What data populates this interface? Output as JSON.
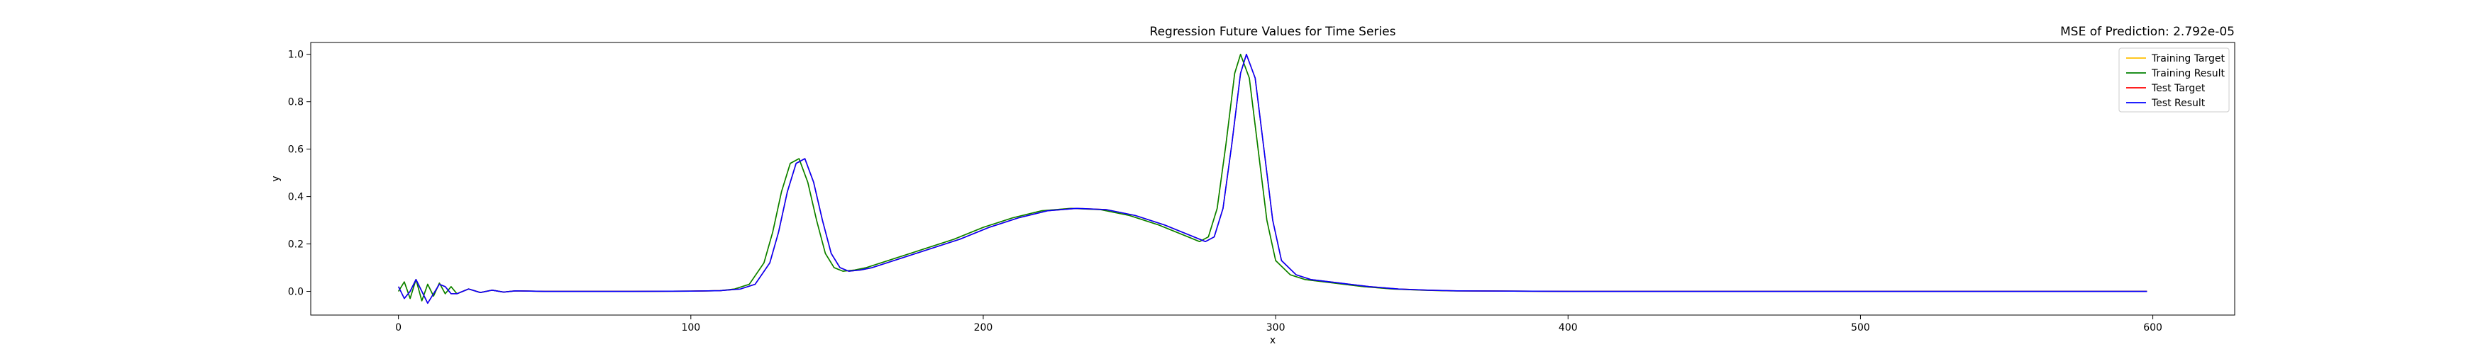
{
  "chart_data": {
    "type": "line",
    "title": "Regression Future Values for Time Series",
    "annotation": "MSE of Prediction: 2.792e-05",
    "xlabel": "x",
    "ylabel": "y",
    "xlim": [
      -30,
      628
    ],
    "ylim": [
      -0.1,
      1.05
    ],
    "xticks": [
      0,
      100,
      200,
      300,
      400,
      500,
      600
    ],
    "yticks": [
      0.0,
      0.2,
      0.4,
      0.6,
      0.8,
      1.0
    ],
    "grid": false,
    "legend_position": "top-right",
    "series": [
      {
        "name": "Training Target",
        "color": "#ffbf00",
        "x": [
          0,
          2,
          4,
          6,
          8,
          10,
          12,
          14,
          16,
          18,
          20,
          24,
          28,
          32,
          36,
          40,
          50,
          60,
          80,
          100,
          110,
          115,
          120,
          125,
          128,
          131,
          134,
          137,
          140,
          143,
          146,
          149,
          152,
          156,
          160,
          170,
          180,
          190,
          200,
          210,
          220,
          230,
          240,
          250,
          260,
          265,
          270,
          274,
          277,
          280,
          283,
          286,
          288,
          291,
          294,
          297,
          300,
          305,
          310,
          320,
          330,
          340,
          350,
          360,
          400,
          450,
          500,
          550,
          598
        ],
        "y": [
          0.0,
          0.04,
          -0.03,
          0.05,
          -0.04,
          0.03,
          -0.02,
          0.035,
          -0.01,
          0.02,
          -0.01,
          0.01,
          -0.005,
          0.005,
          -0.003,
          0.002,
          0.0,
          0.0,
          0.0,
          0.001,
          0.003,
          0.01,
          0.03,
          0.12,
          0.25,
          0.42,
          0.54,
          0.56,
          0.46,
          0.3,
          0.16,
          0.1,
          0.085,
          0.09,
          0.1,
          0.14,
          0.18,
          0.22,
          0.27,
          0.31,
          0.34,
          0.35,
          0.345,
          0.32,
          0.28,
          0.255,
          0.23,
          0.21,
          0.23,
          0.35,
          0.62,
          0.92,
          1.0,
          0.9,
          0.6,
          0.3,
          0.13,
          0.07,
          0.05,
          0.035,
          0.02,
          0.01,
          0.005,
          0.002,
          0.0,
          0.0,
          0.0,
          0.0,
          0.0
        ]
      },
      {
        "name": "Training Result",
        "color": "#008000",
        "x": [
          0,
          2,
          4,
          6,
          8,
          10,
          12,
          14,
          16,
          18,
          20,
          24,
          28,
          32,
          36,
          40,
          50,
          60,
          80,
          100,
          110,
          115,
          120,
          125,
          128,
          131,
          134,
          137,
          140,
          143,
          146,
          149,
          152,
          156,
          160,
          170,
          180,
          190,
          200,
          210,
          220,
          230,
          240,
          250,
          260,
          265,
          270,
          274,
          277,
          280,
          283,
          286,
          288,
          291,
          294,
          297,
          300,
          305,
          310,
          320,
          330,
          340,
          350,
          360,
          400,
          450,
          500,
          550,
          598
        ],
        "y": [
          0.0,
          0.04,
          -0.03,
          0.05,
          -0.04,
          0.03,
          -0.02,
          0.035,
          -0.01,
          0.02,
          -0.01,
          0.01,
          -0.005,
          0.005,
          -0.003,
          0.002,
          0.0,
          0.0,
          0.0,
          0.001,
          0.003,
          0.01,
          0.03,
          0.12,
          0.25,
          0.42,
          0.54,
          0.56,
          0.46,
          0.3,
          0.16,
          0.1,
          0.085,
          0.09,
          0.1,
          0.14,
          0.18,
          0.22,
          0.27,
          0.31,
          0.34,
          0.35,
          0.345,
          0.32,
          0.28,
          0.255,
          0.23,
          0.21,
          0.23,
          0.35,
          0.62,
          0.92,
          1.0,
          0.9,
          0.6,
          0.3,
          0.13,
          0.07,
          0.05,
          0.035,
          0.02,
          0.01,
          0.005,
          0.002,
          0.0,
          0.0,
          0.0,
          0.0,
          0.0
        ]
      },
      {
        "name": "Test Target",
        "color": "#ff0000",
        "x": [
          0,
          2,
          4,
          6,
          8,
          10,
          12,
          14,
          16,
          18,
          20,
          24,
          28,
          32,
          36,
          40,
          50,
          60,
          80,
          100,
          110,
          117,
          122,
          127,
          130,
          133,
          136,
          139,
          142,
          145,
          148,
          151,
          154,
          158,
          162,
          172,
          182,
          192,
          202,
          212,
          222,
          232,
          242,
          252,
          262,
          267,
          272,
          276,
          279,
          282,
          285,
          288,
          290,
          293,
          296,
          299,
          302,
          307,
          312,
          322,
          332,
          342,
          352,
          362,
          402,
          452,
          502,
          552,
          598
        ],
        "y": [
          0.02,
          -0.03,
          0.0,
          0.05,
          0.0,
          -0.05,
          -0.01,
          0.03,
          0.02,
          -0.01,
          -0.01,
          0.01,
          -0.005,
          0.005,
          -0.003,
          0.002,
          0.0,
          0.0,
          0.0,
          0.001,
          0.003,
          0.01,
          0.03,
          0.12,
          0.25,
          0.42,
          0.54,
          0.56,
          0.46,
          0.3,
          0.16,
          0.1,
          0.085,
          0.09,
          0.1,
          0.14,
          0.18,
          0.22,
          0.27,
          0.31,
          0.34,
          0.35,
          0.345,
          0.32,
          0.28,
          0.255,
          0.23,
          0.21,
          0.23,
          0.35,
          0.62,
          0.92,
          1.0,
          0.9,
          0.6,
          0.3,
          0.13,
          0.07,
          0.05,
          0.035,
          0.02,
          0.01,
          0.005,
          0.002,
          0.0,
          0.0,
          0.0,
          0.0,
          0.0
        ]
      },
      {
        "name": "Test Result",
        "color": "#0000ff",
        "x": [
          0,
          2,
          4,
          6,
          8,
          10,
          12,
          14,
          16,
          18,
          20,
          24,
          28,
          32,
          36,
          40,
          50,
          60,
          80,
          100,
          110,
          117,
          122,
          127,
          130,
          133,
          136,
          139,
          142,
          145,
          148,
          151,
          154,
          158,
          162,
          172,
          182,
          192,
          202,
          212,
          222,
          232,
          242,
          252,
          262,
          267,
          272,
          276,
          279,
          282,
          285,
          288,
          290,
          293,
          296,
          299,
          302,
          307,
          312,
          322,
          332,
          342,
          352,
          362,
          402,
          452,
          502,
          552,
          598
        ],
        "y": [
          0.02,
          -0.03,
          0.0,
          0.05,
          0.0,
          -0.05,
          -0.01,
          0.03,
          0.02,
          -0.01,
          -0.01,
          0.01,
          -0.005,
          0.005,
          -0.003,
          0.002,
          0.0,
          0.0,
          0.0,
          0.001,
          0.003,
          0.01,
          0.03,
          0.12,
          0.25,
          0.42,
          0.54,
          0.56,
          0.46,
          0.3,
          0.16,
          0.1,
          0.085,
          0.09,
          0.1,
          0.14,
          0.18,
          0.22,
          0.27,
          0.31,
          0.34,
          0.35,
          0.345,
          0.32,
          0.28,
          0.255,
          0.23,
          0.21,
          0.23,
          0.35,
          0.62,
          0.92,
          1.0,
          0.9,
          0.6,
          0.3,
          0.13,
          0.07,
          0.05,
          0.035,
          0.02,
          0.01,
          0.005,
          0.002,
          0.0,
          0.0,
          0.0,
          0.0,
          0.0
        ]
      }
    ]
  }
}
